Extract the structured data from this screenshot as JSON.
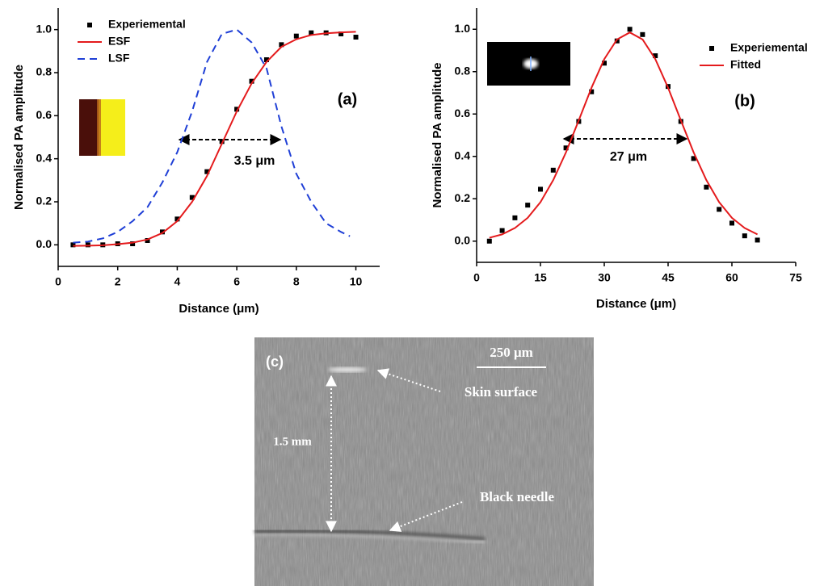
{
  "chart_data": [
    {
      "type": "line",
      "x_label": "Distance (μm)",
      "y_label": "Normalised PA amplitude",
      "annotations": [
        "(a)",
        "3.5 μm"
      ],
      "xlim": [
        0,
        10.8
      ],
      "ylim": [
        -0.1,
        1.1
      ],
      "xticks": [
        0,
        2,
        4,
        6,
        8,
        10
      ],
      "yticks": [
        {
          "value": 0,
          "label": "0.0"
        },
        0.2,
        0.4,
        0.6,
        0.8,
        {
          "value": 1,
          "label": "1.0"
        }
      ],
      "legend": "upper left",
      "series": [
        {
          "name": "Experiemental",
          "color": "#000000",
          "mode": "markers",
          "x": [
            0.5,
            1,
            1.5,
            2,
            2.5,
            3,
            3.5,
            4,
            4.5,
            5,
            5.5,
            6,
            6.5,
            7,
            7.5,
            8,
            8.5,
            9,
            9.5,
            10
          ],
          "values": [
            0,
            0,
            0,
            0.005,
            0.005,
            0.02,
            0.06,
            0.12,
            0.22,
            0.34,
            0.48,
            0.63,
            0.76,
            0.86,
            0.93,
            0.97,
            0.985,
            0.985,
            0.98,
            0.965
          ]
        },
        {
          "name": "ESF",
          "color": "#e41a1c",
          "mode": "solid",
          "x": [
            0.5,
            1,
            1.5,
            2,
            2.5,
            3,
            3.5,
            4,
            4.5,
            5,
            5.5,
            6,
            6.5,
            7,
            7.5,
            8,
            8.5,
            9,
            9.5,
            10
          ],
          "values": [
            -0.005,
            -0.004,
            -0.002,
            0.003,
            0.01,
            0.025,
            0.055,
            0.11,
            0.2,
            0.32,
            0.47,
            0.62,
            0.75,
            0.85,
            0.92,
            0.955,
            0.975,
            0.983,
            0.987,
            0.99
          ]
        },
        {
          "name": "LSF",
          "color": "#1f3fd6",
          "mode": "dashed",
          "x": [
            0.5,
            1,
            1.5,
            2,
            2.5,
            3,
            3.5,
            4,
            4.5,
            5,
            5.5,
            6,
            6.5,
            7,
            7.5,
            8,
            8.5,
            9,
            9.5,
            9.8
          ],
          "values": [
            0.01,
            0.015,
            0.03,
            0.06,
            0.11,
            0.175,
            0.29,
            0.43,
            0.62,
            0.85,
            0.98,
            1.0,
            0.94,
            0.82,
            0.55,
            0.33,
            0.2,
            0.1,
            0.06,
            0.04
          ]
        }
      ]
    },
    {
      "type": "line",
      "x_label": "Distance (μm)",
      "y_label": "Normalised PA amplitude",
      "annotations": [
        "(b)",
        "27 μm"
      ],
      "xlim": [
        0,
        75
      ],
      "ylim": [
        -0.1,
        1.1
      ],
      "xticks": [
        0,
        15,
        30,
        45,
        60,
        75
      ],
      "yticks": [
        {
          "value": 0,
          "label": "0.0"
        },
        0.2,
        0.4,
        0.6,
        0.8,
        {
          "value": 1,
          "label": "1.0"
        }
      ],
      "legend": "upper right",
      "series": [
        {
          "name": "Experiemental",
          "color": "#000000",
          "mode": "markers",
          "x": [
            3,
            6,
            9,
            12,
            15,
            18,
            21,
            24,
            27,
            30,
            33,
            36,
            39,
            42,
            45,
            48,
            51,
            54,
            57,
            60,
            63,
            66
          ],
          "values": [
            0,
            0.05,
            0.11,
            0.17,
            0.245,
            0.335,
            0.44,
            0.565,
            0.705,
            0.84,
            0.945,
            1.0,
            0.975,
            0.875,
            0.73,
            0.565,
            0.39,
            0.255,
            0.15,
            0.085,
            0.025,
            0.005
          ]
        },
        {
          "name": "Fitted",
          "color": "#e41a1c",
          "mode": "solid",
          "x": [
            3,
            6,
            9,
            12,
            15,
            18,
            21,
            24,
            27,
            30,
            33,
            36,
            39,
            42,
            45,
            48,
            51,
            54,
            57,
            60,
            63,
            66
          ],
          "values": [
            0.016,
            0.032,
            0.062,
            0.11,
            0.184,
            0.288,
            0.419,
            0.57,
            0.724,
            0.859,
            0.952,
            0.985,
            0.952,
            0.859,
            0.724,
            0.57,
            0.419,
            0.288,
            0.184,
            0.11,
            0.062,
            0.032
          ]
        }
      ]
    }
  ],
  "image_panel": {
    "label": "(c)",
    "scale_bar": "250 μm",
    "annotations": [
      "Skin surface",
      "1.5 mm",
      "Black needle"
    ]
  }
}
